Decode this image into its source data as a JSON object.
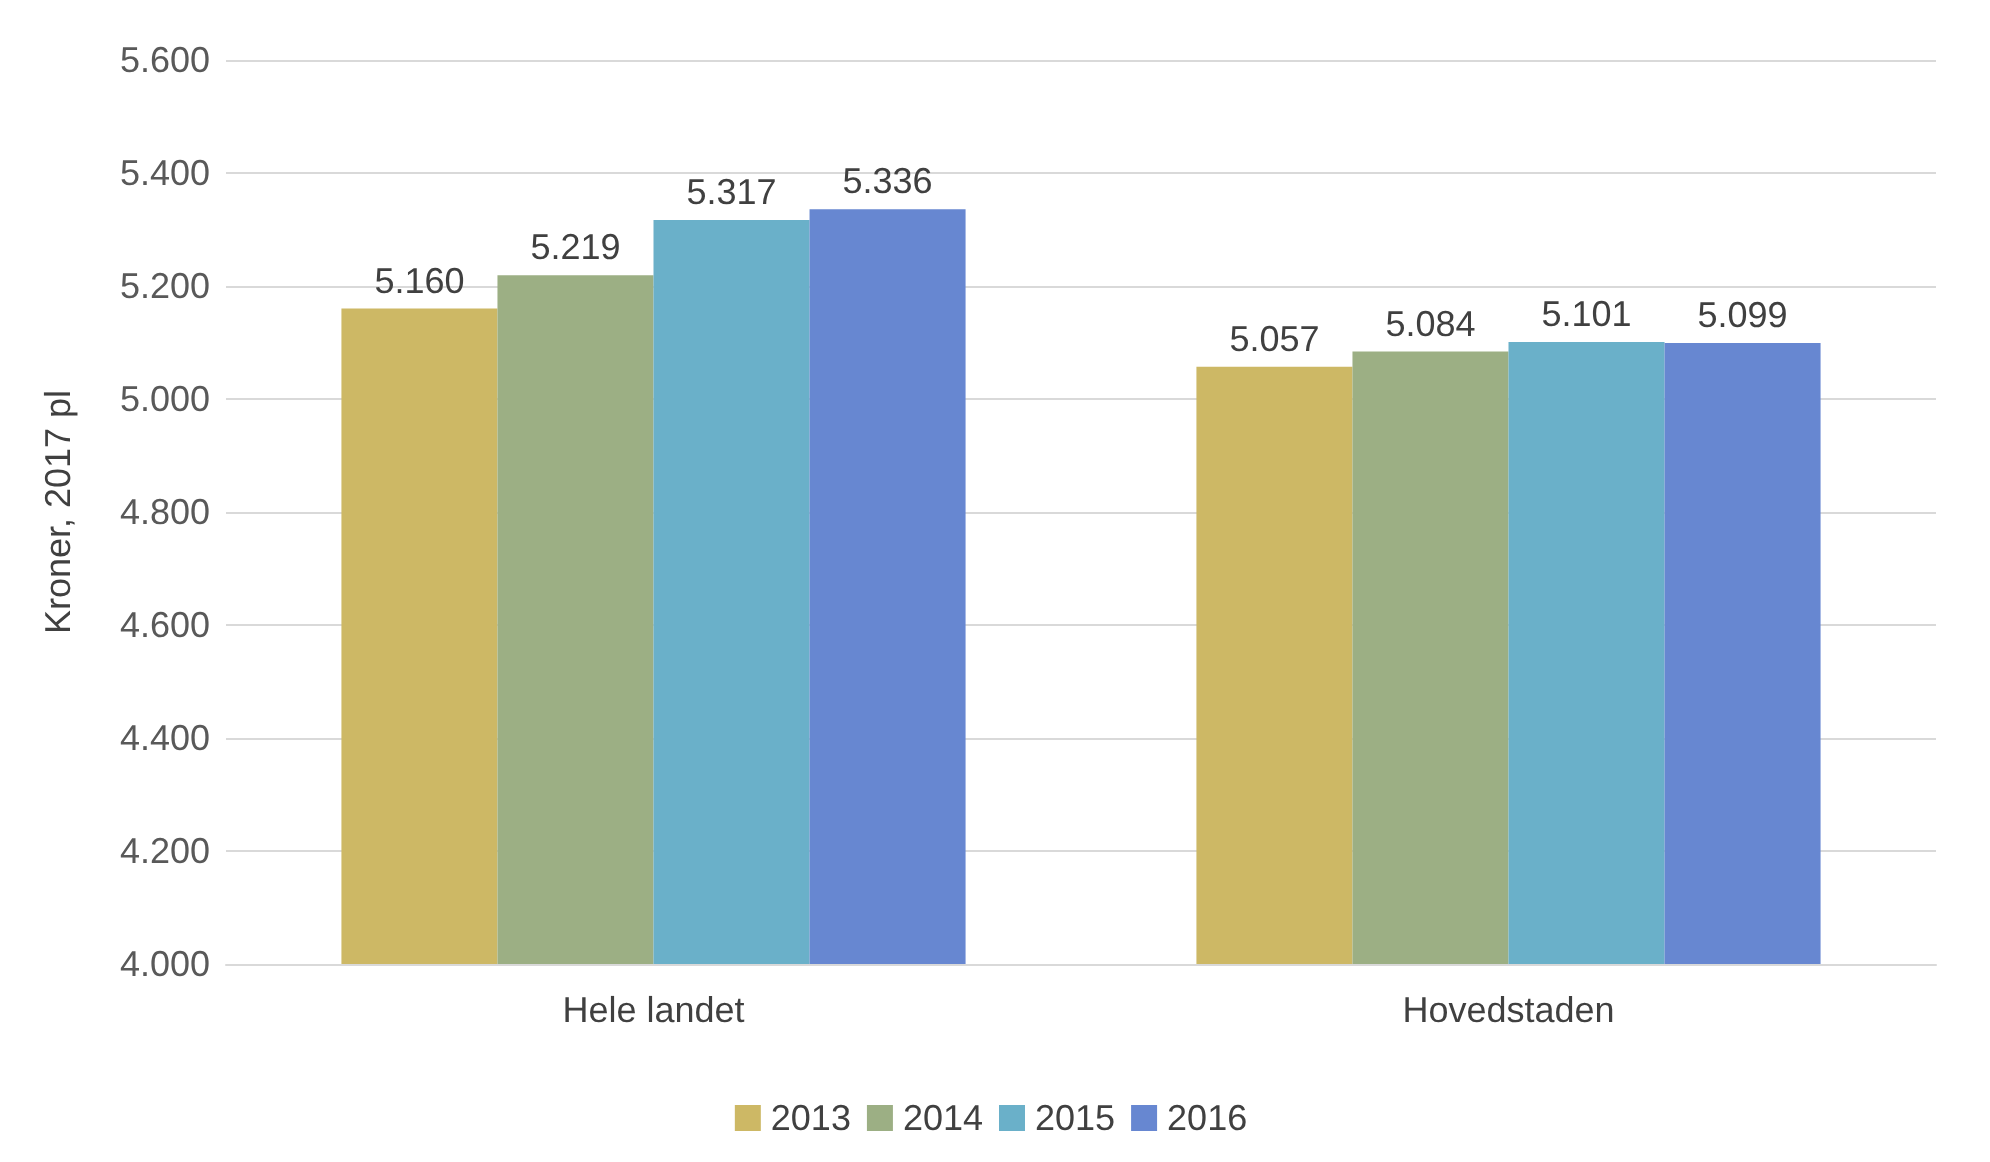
{
  "chart_data": {
    "type": "bar",
    "ylabel": "Kroner, 2017 pl",
    "categories": [
      "Hele landet",
      "Hovedstaden"
    ],
    "series": [
      {
        "name": "2013",
        "color": "#cdb865",
        "values": [
          5160,
          5057
        ],
        "value_labels": [
          "5.160",
          "5.057"
        ]
      },
      {
        "name": "2014",
        "color": "#9caf84",
        "values": [
          5219,
          5084
        ],
        "value_labels": [
          "5.219",
          "5.084"
        ]
      },
      {
        "name": "2015",
        "color": "#6ab0c9",
        "values": [
          5317,
          5101
        ],
        "value_labels": [
          "5.317",
          "5.101"
        ]
      },
      {
        "name": "2016",
        "color": "#6787d1",
        "values": [
          5336,
          5099
        ],
        "value_labels": [
          "5.336",
          "5.099"
        ]
      }
    ],
    "ylim": [
      4000,
      5600
    ],
    "yticks": [
      {
        "value": 4000,
        "label": "4.000"
      },
      {
        "value": 4200,
        "label": "4.200"
      },
      {
        "value": 4400,
        "label": "4.400"
      },
      {
        "value": 4600,
        "label": "4.600"
      },
      {
        "value": 4800,
        "label": "4.800"
      },
      {
        "value": 5000,
        "label": "5.000"
      },
      {
        "value": 5200,
        "label": "5.200"
      },
      {
        "value": 5400,
        "label": "5.400"
      },
      {
        "value": 5600,
        "label": "5.600"
      }
    ],
    "grid": "y",
    "legend": "bottom"
  }
}
